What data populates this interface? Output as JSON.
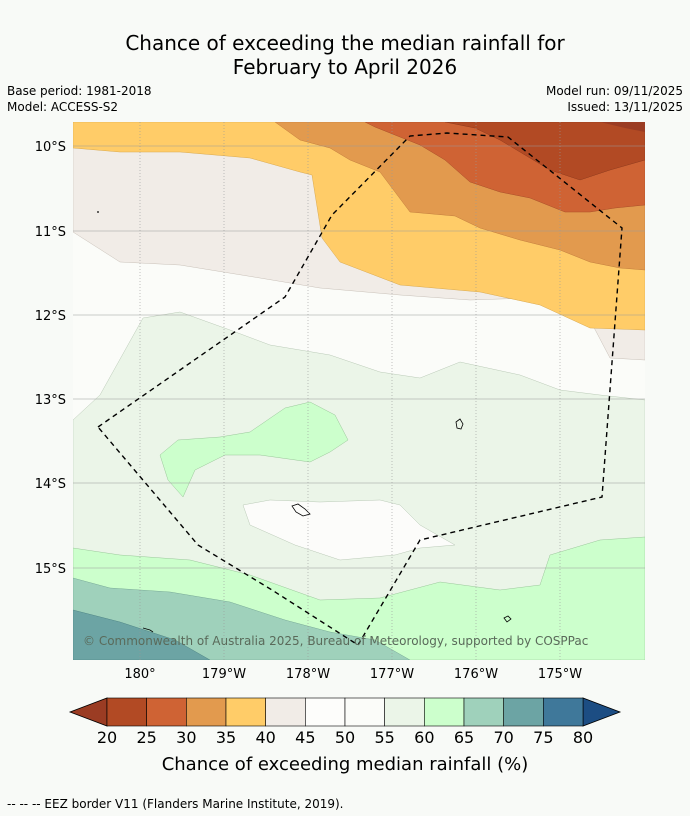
{
  "title": {
    "line1": "Chance of exceeding the median rainfall for",
    "line2": "February to April 2026"
  },
  "meta": {
    "base_period": "Base period: 1981-2018",
    "model": "Model: ACCESS-S2",
    "model_run": "Model run: 09/11/2025",
    "issued": "Issued: 13/11/2025"
  },
  "map": {
    "lat_labels": [
      "10°S",
      "11°S",
      "12°S",
      "13°S",
      "14°S",
      "15°S"
    ],
    "lon_labels": [
      "180°",
      "179°W",
      "178°W",
      "177°W",
      "176°W",
      "175°W"
    ],
    "copyright": "© Commonwealth of Australia 2025, Bureau of Meteorology, supported by COSPPac"
  },
  "colorbar": {
    "ticks": [
      "20",
      "25",
      "30",
      "35",
      "40",
      "45",
      "50",
      "55",
      "60",
      "65",
      "70",
      "75",
      "80"
    ],
    "colors": [
      "#b24a24",
      "#cf6334",
      "#e29a4e",
      "#ffcc68",
      "#f1ece7",
      "#fdfdfb",
      "#fbfcf9",
      "#ebf5e8",
      "#ccffcc",
      "#9fd1bb",
      "#6ca4a4",
      "#3f789a"
    ],
    "low_color": "#9b3c23",
    "high_color": "#1c4d83",
    "title": "Chance of exceeding median rainfall (%)"
  },
  "footer": {
    "eez_note": "--  --  -- EEZ border V11 (Flanders Marine Institute, 2019)."
  }
}
